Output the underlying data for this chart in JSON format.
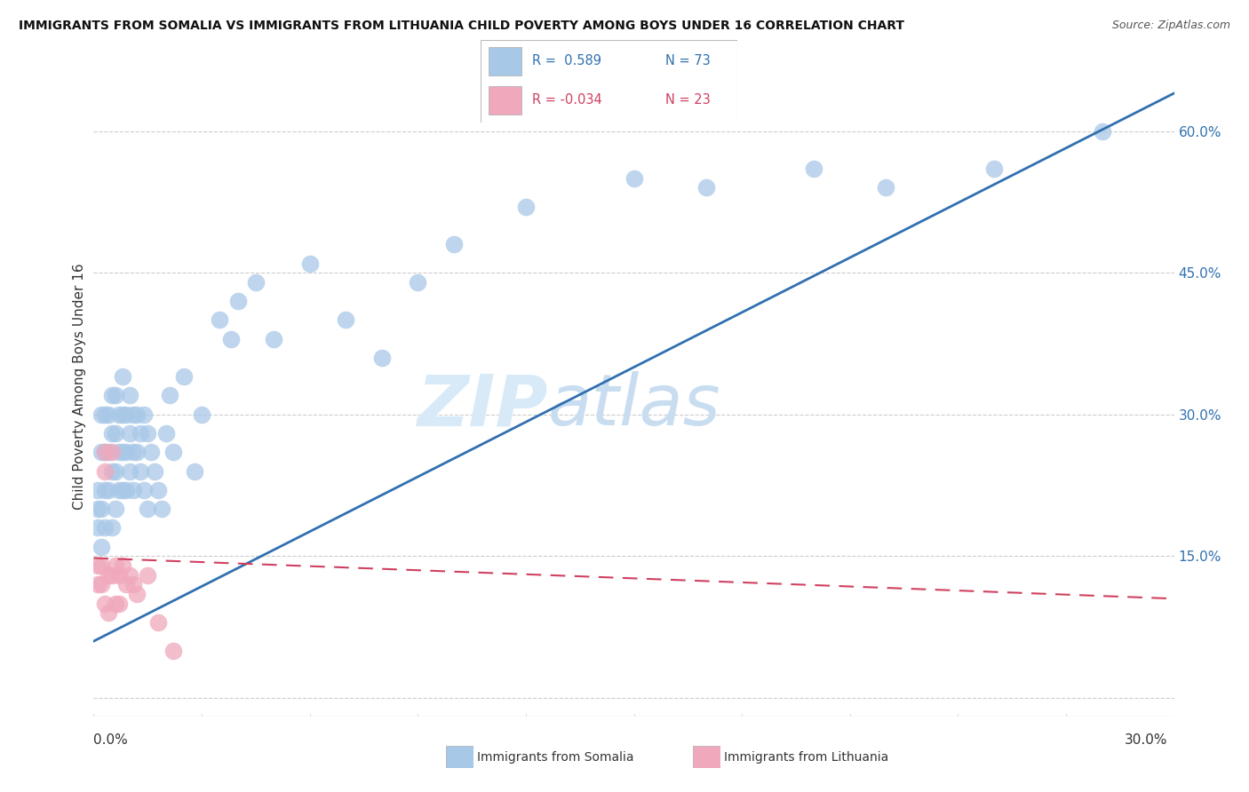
{
  "title": "IMMIGRANTS FROM SOMALIA VS IMMIGRANTS FROM LITHUANIA CHILD POVERTY AMONG BOYS UNDER 16 CORRELATION CHART",
  "source": "Source: ZipAtlas.com",
  "ylabel": "Child Poverty Among Boys Under 16",
  "xlim": [
    0.0,
    0.3
  ],
  "ylim": [
    -0.02,
    0.68
  ],
  "somalia_R": 0.589,
  "somalia_N": 73,
  "lithuania_R": -0.034,
  "lithuania_N": 23,
  "somalia_color": "#a8c8e8",
  "somalia_line_color": "#3070b0",
  "lithuania_color": "#f0a8bc",
  "lithuania_line_color": "#d04060",
  "grid_color": "#cccccc",
  "watermark_color": "#d8eaf8",
  "right_yticks": [
    0.0,
    0.15,
    0.3,
    0.45,
    0.6
  ],
  "right_yticklabels": [
    "",
    "15.0%",
    "30.0%",
    "45.0%",
    "60.0%"
  ],
  "somalia_x": [
    0.001,
    0.001,
    0.001,
    0.002,
    0.002,
    0.002,
    0.002,
    0.003,
    0.003,
    0.003,
    0.003,
    0.004,
    0.004,
    0.004,
    0.005,
    0.005,
    0.005,
    0.005,
    0.006,
    0.006,
    0.006,
    0.006,
    0.007,
    0.007,
    0.007,
    0.008,
    0.008,
    0.008,
    0.008,
    0.009,
    0.009,
    0.009,
    0.01,
    0.01,
    0.01,
    0.011,
    0.011,
    0.011,
    0.012,
    0.012,
    0.013,
    0.013,
    0.014,
    0.014,
    0.015,
    0.015,
    0.016,
    0.017,
    0.018,
    0.019,
    0.02,
    0.021,
    0.022,
    0.025,
    0.028,
    0.03,
    0.035,
    0.038,
    0.04,
    0.045,
    0.05,
    0.06,
    0.07,
    0.08,
    0.09,
    0.1,
    0.12,
    0.15,
    0.17,
    0.2,
    0.22,
    0.25,
    0.28
  ],
  "somalia_y": [
    0.2,
    0.22,
    0.18,
    0.3,
    0.26,
    0.2,
    0.16,
    0.3,
    0.26,
    0.22,
    0.18,
    0.3,
    0.26,
    0.22,
    0.32,
    0.28,
    0.24,
    0.18,
    0.32,
    0.28,
    0.24,
    0.2,
    0.3,
    0.26,
    0.22,
    0.34,
    0.3,
    0.26,
    0.22,
    0.3,
    0.26,
    0.22,
    0.32,
    0.28,
    0.24,
    0.3,
    0.26,
    0.22,
    0.3,
    0.26,
    0.28,
    0.24,
    0.3,
    0.22,
    0.28,
    0.2,
    0.26,
    0.24,
    0.22,
    0.2,
    0.28,
    0.32,
    0.26,
    0.34,
    0.24,
    0.3,
    0.4,
    0.38,
    0.42,
    0.44,
    0.38,
    0.46,
    0.4,
    0.36,
    0.44,
    0.48,
    0.52,
    0.55,
    0.54,
    0.56,
    0.54,
    0.56,
    0.6
  ],
  "lithuania_x": [
    0.001,
    0.001,
    0.002,
    0.002,
    0.003,
    0.003,
    0.003,
    0.004,
    0.004,
    0.005,
    0.005,
    0.006,
    0.006,
    0.007,
    0.007,
    0.008,
    0.009,
    0.01,
    0.011,
    0.012,
    0.015,
    0.018,
    0.022
  ],
  "lithuania_y": [
    0.14,
    0.12,
    0.14,
    0.12,
    0.26,
    0.24,
    0.1,
    0.13,
    0.09,
    0.26,
    0.13,
    0.14,
    0.1,
    0.13,
    0.1,
    0.14,
    0.12,
    0.13,
    0.12,
    0.11,
    0.13,
    0.08,
    0.05
  ],
  "somalia_regline_x": [
    0.0,
    0.3
  ],
  "somalia_regline_y": [
    0.06,
    0.64
  ],
  "lithuania_regline_x": [
    0.0,
    0.3
  ],
  "lithuania_regline_y": [
    0.148,
    0.105
  ]
}
